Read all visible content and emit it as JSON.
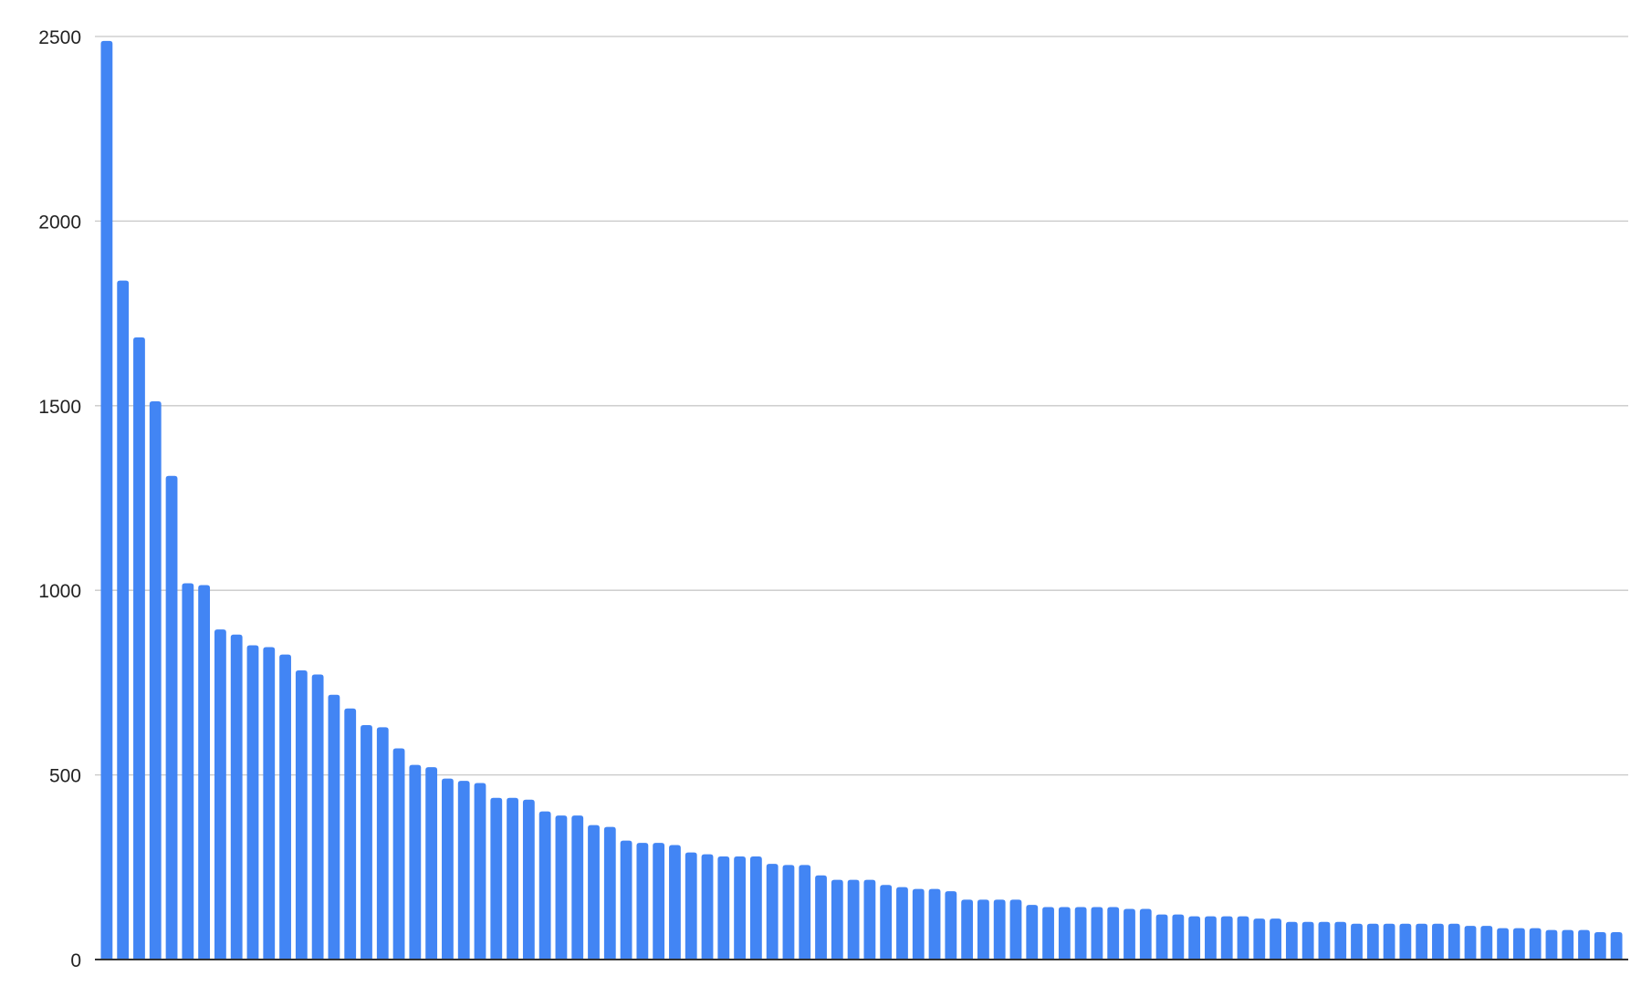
{
  "chart_data": {
    "type": "bar",
    "title": "",
    "xlabel": "",
    "ylabel": "",
    "ylim": [
      0,
      2500
    ],
    "yticks": [
      "0",
      "500",
      "1000",
      "1500",
      "2000",
      "2500"
    ],
    "grid": true,
    "legend": "none",
    "bar_color": "#4285f4",
    "values": [
      2488,
      1839,
      1685,
      1512,
      1310,
      1019,
      1014,
      894,
      880,
      851,
      846,
      826,
      783,
      772,
      717,
      680,
      635,
      629,
      572,
      527,
      521,
      490,
      484,
      478,
      438,
      438,
      433,
      401,
      390,
      390,
      364,
      359,
      322,
      316,
      316,
      310,
      290,
      285,
      279,
      279,
      279,
      259,
      256,
      256,
      228,
      216,
      216,
      216,
      202,
      196,
      191,
      191,
      185,
      162,
      162,
      162,
      162,
      148,
      142,
      142,
      142,
      142,
      142,
      137,
      137,
      122,
      122,
      117,
      117,
      117,
      117,
      111,
      111,
      102,
      102,
      102,
      102,
      97,
      97,
      97,
      97,
      97,
      97,
      97,
      91,
      91,
      85,
      85,
      85,
      80,
      80,
      80,
      74,
      74
    ]
  }
}
